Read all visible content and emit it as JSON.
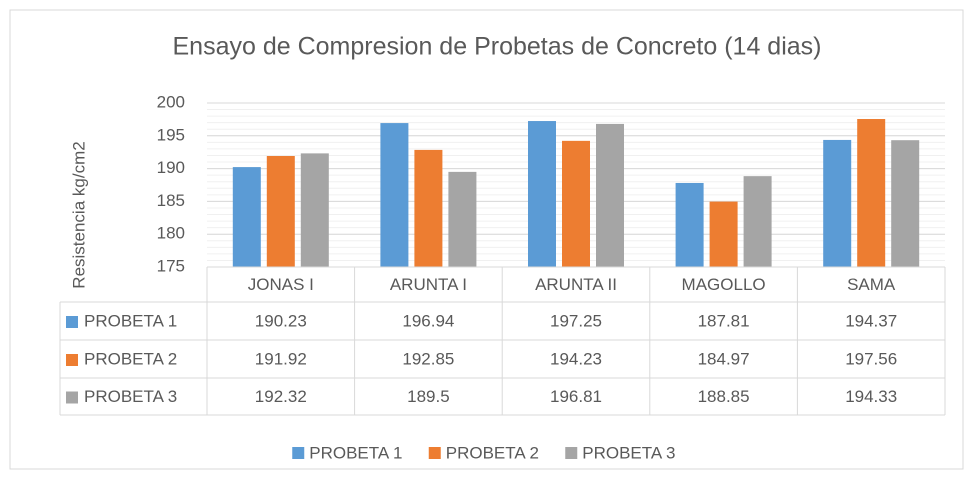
{
  "chart_data": {
    "type": "bar",
    "title": "Ensayo de Compresion de Probetas de Concreto (14 dias)",
    "y_label": "Resistencia  kg/cm2",
    "categories": [
      "JONAS I",
      "ARUNTA I",
      "ARUNTA II",
      "MAGOLLO",
      "SAMA"
    ],
    "series": [
      {
        "name": "PROBETA 1",
        "color": "#5b9bd5",
        "values": [
          190.23,
          196.94,
          197.25,
          187.81,
          194.37
        ]
      },
      {
        "name": "PROBETA 2",
        "color": "#ed7d31",
        "values": [
          191.92,
          192.85,
          194.23,
          184.97,
          197.56
        ]
      },
      {
        "name": "PROBETA 3",
        "color": "#a5a5a5",
        "values": [
          192.32,
          189.5,
          196.81,
          188.85,
          194.33
        ]
      }
    ],
    "ylim": [
      175,
      200
    ],
    "yticks": [
      175,
      180,
      185,
      190,
      195,
      200
    ],
    "grid": true,
    "minor_grid": true,
    "data_table": true,
    "legend": "bottom"
  }
}
